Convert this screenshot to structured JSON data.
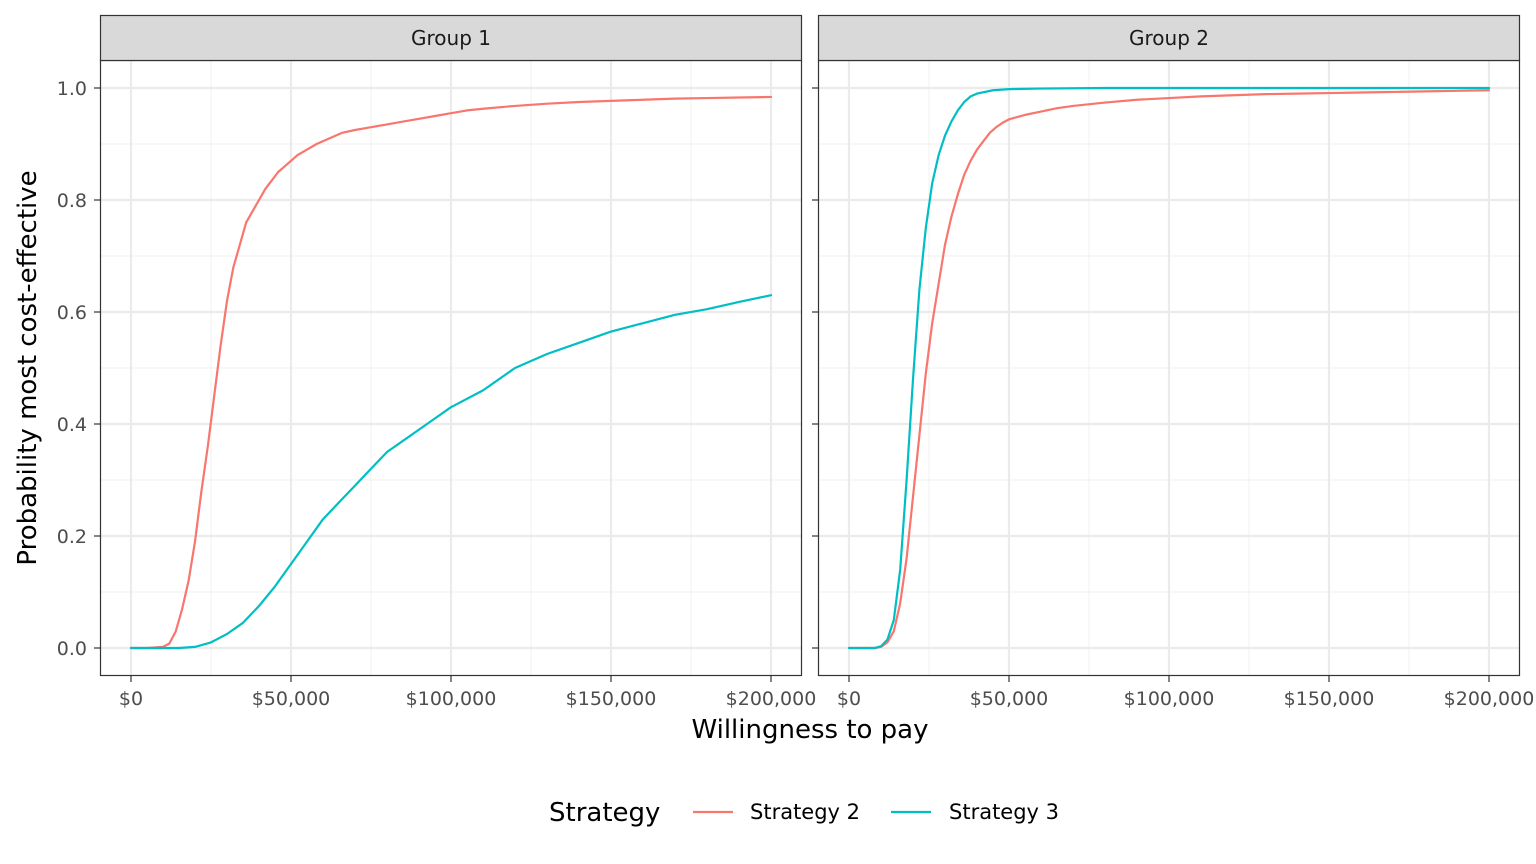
{
  "chart_data": {
    "type": "line",
    "xlabel": "Willingness to pay",
    "ylabel": "Probability most cost-effective",
    "xlim": [
      0,
      200000
    ],
    "ylim": [
      0,
      1
    ],
    "x_ticks": [
      0,
      50000,
      100000,
      150000,
      200000
    ],
    "x_tick_labels": [
      "$0",
      "$50,000",
      "$100,000",
      "$150,000",
      "$200,000"
    ],
    "y_ticks": [
      0,
      0.2,
      0.4,
      0.6,
      0.8,
      1.0
    ],
    "y_tick_labels": [
      "0.0",
      "0.2",
      "0.4",
      "0.6",
      "0.8",
      "1.0"
    ],
    "grid": true,
    "legend": {
      "title": "Strategy",
      "position": "bottom",
      "entries": [
        {
          "name": "Strategy 2",
          "color": "#F8766D"
        },
        {
          "name": "Strategy 3",
          "color": "#00BFC4"
        }
      ]
    },
    "panels": [
      {
        "label": "Group 1",
        "series": [
          {
            "name": "Strategy 2",
            "color": "#F8766D",
            "x": [
              0,
              5000,
              10000,
              12000,
              14000,
              16000,
              18000,
              20000,
              22000,
              24000,
              26000,
              28000,
              30000,
              32000,
              34000,
              36000,
              38000,
              40000,
              42000,
              44000,
              46000,
              48000,
              50000,
              52000,
              55000,
              58000,
              62000,
              66000,
              70000,
              75000,
              80000,
              85000,
              90000,
              95000,
              100000,
              105000,
              110000,
              120000,
              130000,
              140000,
              150000,
              160000,
              170000,
              180000,
              190000,
              200000
            ],
            "values": [
              0,
              0,
              0.002,
              0.008,
              0.03,
              0.07,
              0.12,
              0.19,
              0.28,
              0.36,
              0.45,
              0.54,
              0.62,
              0.68,
              0.72,
              0.76,
              0.78,
              0.8,
              0.82,
              0.835,
              0.85,
              0.86,
              0.87,
              0.88,
              0.89,
              0.9,
              0.91,
              0.92,
              0.925,
              0.93,
              0.935,
              0.94,
              0.945,
              0.95,
              0.955,
              0.96,
              0.963,
              0.968,
              0.972,
              0.975,
              0.977,
              0.979,
              0.981,
              0.982,
              0.983,
              0.984
            ]
          },
          {
            "name": "Strategy 3",
            "color": "#00BFC4",
            "x": [
              0,
              15000,
              20000,
              25000,
              30000,
              35000,
              40000,
              45000,
              50000,
              55000,
              60000,
              65000,
              70000,
              75000,
              80000,
              85000,
              90000,
              95000,
              100000,
              110000,
              120000,
              130000,
              140000,
              150000,
              160000,
              170000,
              180000,
              190000,
              200000
            ],
            "values": [
              0,
              0,
              0.002,
              0.01,
              0.025,
              0.045,
              0.075,
              0.11,
              0.15,
              0.19,
              0.23,
              0.26,
              0.29,
              0.32,
              0.35,
              0.37,
              0.39,
              0.41,
              0.43,
              0.46,
              0.5,
              0.525,
              0.545,
              0.565,
              0.58,
              0.595,
              0.605,
              0.618,
              0.63
            ]
          }
        ]
      },
      {
        "label": "Group 2",
        "series": [
          {
            "name": "Strategy 2",
            "color": "#F8766D",
            "x": [
              0,
              8000,
              10000,
              12000,
              14000,
              16000,
              18000,
              20000,
              22000,
              24000,
              26000,
              28000,
              30000,
              32000,
              34000,
              36000,
              38000,
              40000,
              42000,
              44000,
              46000,
              48000,
              50000,
              55000,
              60000,
              65000,
              70000,
              80000,
              90000,
              100000,
              110000,
              120000,
              130000,
              140000,
              150000,
              160000,
              170000,
              180000,
              190000,
              200000
            ],
            "values": [
              0,
              0,
              0.002,
              0.01,
              0.03,
              0.08,
              0.16,
              0.27,
              0.38,
              0.49,
              0.58,
              0.65,
              0.72,
              0.77,
              0.81,
              0.845,
              0.87,
              0.89,
              0.905,
              0.92,
              0.93,
              0.938,
              0.944,
              0.952,
              0.958,
              0.964,
              0.968,
              0.974,
              0.979,
              0.982,
              0.985,
              0.987,
              0.989,
              0.99,
              0.991,
              0.992,
              0.993,
              0.994,
              0.995,
              0.996
            ]
          },
          {
            "name": "Strategy 3",
            "color": "#00BFC4",
            "x": [
              0,
              8000,
              10000,
              12000,
              14000,
              16000,
              18000,
              20000,
              22000,
              24000,
              26000,
              28000,
              30000,
              32000,
              34000,
              36000,
              38000,
              40000,
              45000,
              50000,
              60000,
              80000,
              100000,
              150000,
              200000
            ],
            "values": [
              0,
              0,
              0.003,
              0.015,
              0.05,
              0.14,
              0.3,
              0.48,
              0.64,
              0.75,
              0.83,
              0.88,
              0.915,
              0.94,
              0.96,
              0.975,
              0.985,
              0.99,
              0.996,
              0.998,
              0.999,
              1.0,
              1.0,
              1.0,
              1.0
            ]
          }
        ]
      }
    ]
  }
}
